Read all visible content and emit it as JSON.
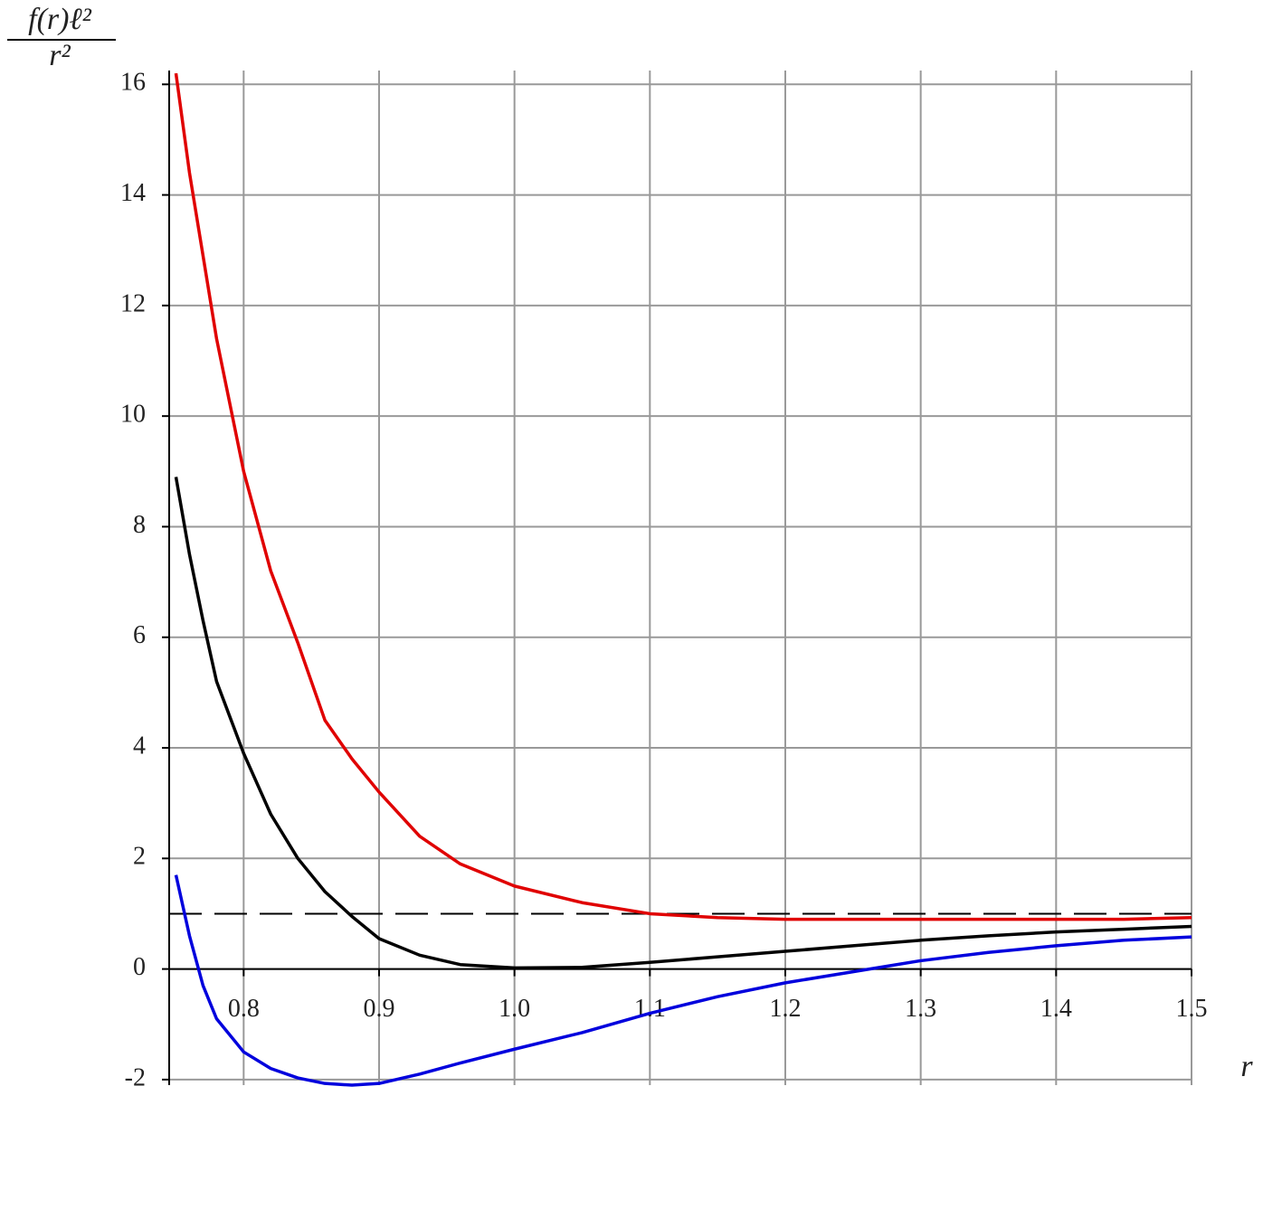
{
  "chart_data": {
    "type": "line",
    "ylabel": [
      "f(r)ℓ²",
      "r²"
    ],
    "xlabel": "r",
    "x": [
      0.75,
      0.76,
      0.77,
      0.78,
      0.8,
      0.82,
      0.84,
      0.86,
      0.88,
      0.9,
      0.93,
      0.96,
      1.0,
      1.05,
      1.1,
      1.15,
      1.2,
      1.25,
      1.3,
      1.35,
      1.4,
      1.45,
      1.5
    ],
    "series": [
      {
        "color": "#e00000",
        "values": [
          16.2,
          14.4,
          12.9,
          11.4,
          9.0,
          7.2,
          5.9,
          4.5,
          3.8,
          3.2,
          2.4,
          1.9,
          1.5,
          1.2,
          1.0,
          0.93,
          0.9,
          0.9,
          0.9,
          0.9,
          0.9,
          0.9,
          0.93
        ]
      },
      {
        "color": "#000000",
        "values": [
          8.9,
          7.5,
          6.3,
          5.2,
          3.9,
          2.8,
          2.0,
          1.4,
          0.95,
          0.55,
          0.25,
          0.08,
          0.02,
          0.03,
          0.12,
          0.22,
          0.32,
          0.42,
          0.52,
          0.6,
          0.67,
          0.72,
          0.77
        ]
      },
      {
        "color": "#0000dd",
        "values": [
          1.7,
          0.6,
          -0.3,
          -0.9,
          -1.5,
          -1.8,
          -1.97,
          -2.07,
          -2.1,
          -2.07,
          -1.9,
          -1.7,
          -1.45,
          -1.15,
          -0.8,
          -0.5,
          -0.25,
          -0.05,
          0.15,
          0.3,
          0.42,
          0.52,
          0.58
        ]
      }
    ],
    "hline": 1,
    "xlim": [
      0.745,
      1.5
    ],
    "ylim": [
      -2.1,
      16.25
    ],
    "xticks": [
      0.8,
      0.9,
      {
        "value": 1.0,
        "label": "1.0"
      },
      1.1,
      1.2,
      1.3,
      1.4,
      1.5
    ],
    "yticks": [
      -2,
      0,
      2,
      4,
      6,
      8,
      10,
      12,
      14,
      16
    ],
    "grid": true
  }
}
